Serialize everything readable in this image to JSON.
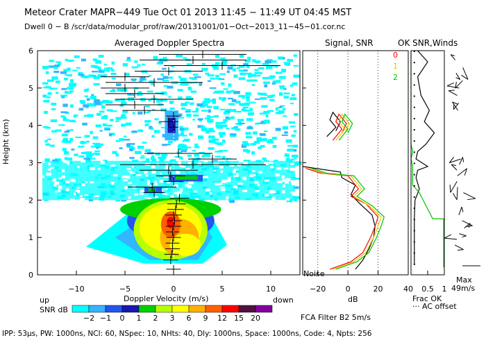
{
  "header": {
    "title": "Meteor Crater   MAPR−449   Tue Oct 01 2013 11:45 − 11:49 UT 04:45 MST",
    "dwell": "Dwell  0 −  B   /scr/data/modular_prof/raw/20131001/01−Oct−2013_11−45−01.cor.nc"
  },
  "panels": {
    "spectra_title": "Averaged Doppler Spectra",
    "signal_title": "Signal, SNR",
    "ok_title": "OK SNR,Winds"
  },
  "chart_data": [
    {
      "type": "heatmap",
      "title": "Averaged Doppler Spectra",
      "xlabel": "Doppler Velocity (m/s)",
      "ylabel": "Height (km)",
      "xlim": [
        -14,
        13
      ],
      "ylim": [
        0,
        6
      ],
      "xticks": [
        -10,
        -5,
        0,
        5,
        10
      ],
      "yticks": [
        0,
        1,
        2,
        3,
        4,
        5,
        6
      ],
      "left_label": "up",
      "right_label": "down",
      "colorbar": {
        "label": "SNR dB",
        "ticks": [
          "−2",
          "−1",
          "0",
          "1",
          "2",
          "3",
          "6",
          "9",
          "12",
          "15",
          "20"
        ],
        "colors": [
          "#00ffff",
          "#33b5ff",
          "#2255ee",
          "#1818b0",
          "#00d000",
          "#b8ff00",
          "#ffff00",
          "#ffb000",
          "#ff6000",
          "#ff0000",
          "#501040",
          "#8000a0"
        ]
      },
      "width_bars": [
        {
          "h": 0.15,
          "v": 0.0,
          "w": 1.5
        },
        {
          "h": 0.4,
          "v": -0.3,
          "w": 1.5
        },
        {
          "h": 0.55,
          "v": -0.2,
          "w": 1.5
        },
        {
          "h": 0.7,
          "v": -0.1,
          "w": 1.5
        },
        {
          "h": 0.85,
          "v": -0.1,
          "w": 1.4
        },
        {
          "h": 1.0,
          "v": 0.0,
          "w": 1.5
        },
        {
          "h": 1.15,
          "v": -0.1,
          "w": 1.4
        },
        {
          "h": 1.3,
          "v": 0.0,
          "w": 1.6
        },
        {
          "h": 1.45,
          "v": 0.1,
          "w": 1.5
        },
        {
          "h": 1.6,
          "v": 0.0,
          "w": 1.7
        },
        {
          "h": 1.75,
          "v": 0.2,
          "w": 1.7
        },
        {
          "h": 1.9,
          "v": 0.3,
          "w": 1.9
        },
        {
          "h": 2.05,
          "v": 0.6,
          "w": 2.0
        },
        {
          "h": 2.2,
          "v": -2.0,
          "w": 2.2
        },
        {
          "h": 2.35,
          "v": -2.2,
          "w": 5.0
        },
        {
          "h": 2.5,
          "v": 0.0,
          "w": 2.0
        },
        {
          "h": 2.65,
          "v": -0.3,
          "w": 3.0
        },
        {
          "h": 2.8,
          "v": -0.5,
          "w": 6.0
        },
        {
          "h": 2.95,
          "v": 2.0,
          "w": 15.0
        },
        {
          "h": 3.1,
          "v": 4.0,
          "w": 5.0
        },
        {
          "h": 3.25,
          "v": 0.5,
          "w": 7.0
        },
        {
          "h": 3.95,
          "v": 0.0,
          "w": 1.0
        },
        {
          "h": 4.1,
          "v": -0.5,
          "w": 2.0
        },
        {
          "h": 4.25,
          "v": 0.0,
          "w": 1.5
        },
        {
          "h": 4.4,
          "v": -3.0,
          "w": 4.5
        },
        {
          "h": 4.55,
          "v": -4.0,
          "w": 6.0
        },
        {
          "h": 4.7,
          "v": -2.0,
          "w": 8.0
        },
        {
          "h": 4.85,
          "v": -4.0,
          "w": 6.0
        },
        {
          "h": 5.0,
          "v": -5.0,
          "w": 5.0
        },
        {
          "h": 5.15,
          "v": -2.0,
          "w": 10.0
        },
        {
          "h": 5.3,
          "v": -5.0,
          "w": 5.0
        },
        {
          "h": 5.45,
          "v": -0.5,
          "w": 7.0
        },
        {
          "h": 5.6,
          "v": 5.0,
          "w": 12.0
        },
        {
          "h": 5.75,
          "v": 2.0,
          "w": 11.0
        },
        {
          "h": 5.9,
          "v": 3.0,
          "w": 9.0
        }
      ]
    },
    {
      "type": "line",
      "title": "Signal, SNR",
      "xlabel": "dB",
      "xlim": [
        -30,
        40
      ],
      "ylim": [
        0,
        6
      ],
      "xticks": [
        -20,
        0,
        20,
        40
      ],
      "dotted_x": [
        -20,
        0,
        20
      ],
      "noise_label": "Noise",
      "legend": [
        {
          "label": "0",
          "color": "#ff0000"
        },
        {
          "label": "1",
          "color": "#e6c800"
        },
        {
          "label": "2",
          "color": "#00c000"
        }
      ],
      "series": [
        {
          "name": "signal",
          "color": "#000000",
          "points": [
            [
              5,
              0.15
            ],
            [
              10,
              0.4
            ],
            [
              14,
              0.7
            ],
            [
              17,
              1.0
            ],
            [
              18,
              1.3
            ],
            [
              16,
              1.6
            ],
            [
              8,
              1.9
            ],
            [
              2,
              2.15
            ],
            [
              5,
              2.4
            ],
            [
              -4,
              2.6
            ],
            [
              -5,
              2.75
            ],
            [
              -30,
              2.9
            ]
          ]
        },
        {
          "name": "0",
          "color": "#ff0000",
          "points": [
            [
              -12,
              0.15
            ],
            [
              2,
              0.35
            ],
            [
              10,
              0.6
            ],
            [
              15,
              1.0
            ],
            [
              18,
              1.3
            ],
            [
              20,
              1.55
            ],
            [
              12,
              1.9
            ],
            [
              2,
              2.1
            ],
            [
              7,
              2.3
            ],
            [
              3,
              2.5
            ],
            [
              0,
              2.65
            ],
            [
              -18,
              2.72
            ],
            [
              -28,
              2.85
            ]
          ]
        },
        {
          "name": "1",
          "color": "#e6c800",
          "points": [
            [
              -10,
              0.15
            ],
            [
              4,
              0.35
            ],
            [
              12,
              0.6
            ],
            [
              17,
              1.0
            ],
            [
              20,
              1.3
            ],
            [
              22,
              1.55
            ],
            [
              14,
              1.85
            ],
            [
              4,
              2.1
            ],
            [
              9,
              2.3
            ],
            [
              5,
              2.5
            ],
            [
              2,
              2.65
            ],
            [
              -16,
              2.72
            ],
            [
              -26,
              2.85
            ]
          ]
        },
        {
          "name": "2",
          "color": "#00c000",
          "points": [
            [
              -8,
              0.15
            ],
            [
              6,
              0.35
            ],
            [
              14,
              0.6
            ],
            [
              19,
              1.0
            ],
            [
              22,
              1.3
            ],
            [
              24,
              1.55
            ],
            [
              16,
              1.85
            ],
            [
              6,
              2.1
            ],
            [
              11,
              2.3
            ],
            [
              7,
              2.5
            ],
            [
              4,
              2.65
            ],
            [
              -14,
              2.72
            ],
            [
              -24,
              2.85
            ]
          ]
        }
      ],
      "upper_series": [
        {
          "name": "signal",
          "color": "#000000",
          "points": [
            [
              -14,
              3.7
            ],
            [
              -8,
              3.95
            ],
            [
              -12,
              4.15
            ],
            [
              -10,
              4.35
            ],
            [
              -5,
              4.1
            ],
            [
              -8,
              3.85
            ]
          ]
        },
        {
          "name": "0",
          "color": "#ff0000",
          "points": [
            [
              -10,
              3.6
            ],
            [
              -4,
              3.9
            ],
            [
              -8,
              4.1
            ],
            [
              -6,
              4.3
            ],
            [
              -1,
              4.05
            ],
            [
              -4,
              3.8
            ]
          ]
        },
        {
          "name": "1",
          "color": "#e6c800",
          "points": [
            [
              -8,
              3.6
            ],
            [
              -2,
              3.9
            ],
            [
              -6,
              4.1
            ],
            [
              -4,
              4.3
            ],
            [
              1,
              4.05
            ],
            [
              -2,
              3.8
            ]
          ]
        },
        {
          "name": "2",
          "color": "#00c000",
          "points": [
            [
              -6,
              3.6
            ],
            [
              0,
              3.9
            ],
            [
              -4,
              4.1
            ],
            [
              -2,
              4.3
            ],
            [
              3,
              4.05
            ],
            [
              0,
              3.8
            ]
          ]
        }
      ]
    },
    {
      "type": "line",
      "title": "OK SNR,Winds",
      "xlim": [
        0,
        1
      ],
      "ylim": [
        0,
        6
      ],
      "xticks": [
        0.5,
        1
      ],
      "xticklabels": [
        "0.5",
        "1"
      ],
      "xlabel": "Frac OK",
      "ac_label": "··· AC offset",
      "max_label": "Max",
      "max_value": "49m/s",
      "series": [
        {
          "name": "frac_ok_snr",
          "color": "#000000",
          "points": [
            [
              0.1,
              0.3
            ],
            [
              0.1,
              1.5
            ],
            [
              0.12,
              2.0
            ],
            [
              0.25,
              2.3
            ],
            [
              0.15,
              2.6
            ],
            [
              0.2,
              2.8
            ],
            [
              0.5,
              2.9
            ],
            [
              0.15,
              3.1
            ],
            [
              0.2,
              3.3
            ],
            [
              0.45,
              3.5
            ],
            [
              0.7,
              3.8
            ],
            [
              0.4,
              4.1
            ],
            [
              0.55,
              4.4
            ],
            [
              0.3,
              4.8
            ],
            [
              0.2,
              5.3
            ],
            [
              0.5,
              5.7
            ],
            [
              0.2,
              6.0
            ]
          ]
        },
        {
          "name": "frac_ok_winds",
          "color": "#00c000",
          "points": [
            [
              0.98,
              0.2
            ],
            [
              0.98,
              1.5
            ],
            [
              0.65,
              1.5
            ],
            [
              0.25,
              2.2
            ],
            [
              0.05,
              2.4
            ],
            [
              0.05,
              2.9
            ],
            [
              0.0,
              3.1
            ],
            [
              0.05,
              3.3
            ],
            [
              0.0,
              3.5
            ],
            [
              0.0,
              6.0
            ]
          ]
        }
      ]
    }
  ],
  "footer": {
    "fca": "FCA Filter B2  5m/s",
    "params": "IPP: 53µs, PW: 1000ns, NCI: 60, NSpec: 10, NHts: 40, Dly: 1000ns, Space: 1000ns, Code: 4, Npts: 256"
  }
}
